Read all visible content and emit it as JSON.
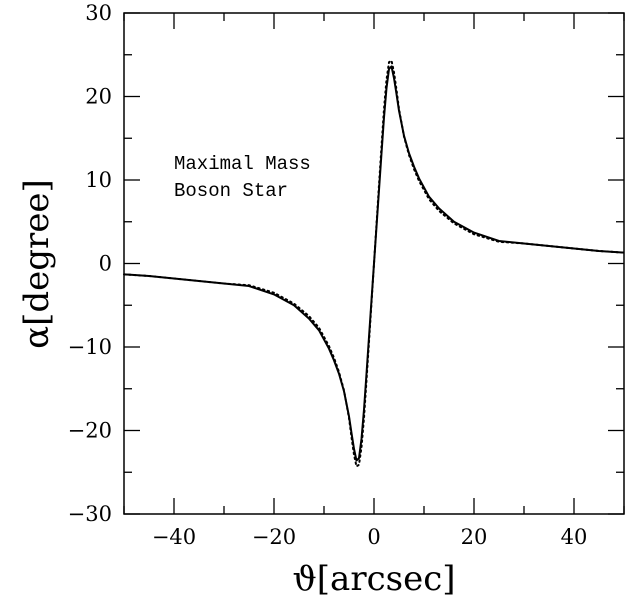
{
  "chart_data": {
    "type": "line",
    "title": "",
    "xlabel": "ϑ[arcsec]",
    "ylabel": "α[degree]",
    "xlim": [
      -50,
      50
    ],
    "ylim": [
      -30,
      30
    ],
    "xticks": [
      -40,
      -20,
      0,
      20,
      40
    ],
    "yticks": [
      -30,
      -20,
      -10,
      0,
      10,
      20,
      30
    ],
    "x_tick_labels": [
      "−40",
      "−20",
      "0",
      "20",
      "40"
    ],
    "y_tick_labels": [
      "−30",
      "−20",
      "−10",
      "0",
      "10",
      "20",
      "30"
    ],
    "grid": false,
    "annotation": [
      "Maximal Mass",
      "Boson Star"
    ],
    "series": [
      {
        "style": "solid",
        "x": [
          -50,
          -45,
          -40,
          -35,
          -30,
          -25,
          -20,
          -16,
          -13,
          -11,
          -9,
          -8,
          -7,
          -6,
          -5,
          -4.5,
          -4,
          -3.5,
          -3,
          -2.5,
          -2,
          -1.5,
          -1,
          0,
          1,
          1.5,
          2,
          2.5,
          3,
          3.5,
          4,
          4.5,
          5,
          6,
          7,
          8,
          9,
          11,
          13,
          16,
          20,
          25,
          30,
          35,
          40,
          45,
          50
        ],
        "y": [
          -1.3,
          -1.5,
          -1.8,
          -2.1,
          -2.4,
          -2.7,
          -3.7,
          -5.0,
          -6.6,
          -8.0,
          -10.2,
          -11.6,
          -13.2,
          -15.3,
          -18.3,
          -20.3,
          -22.2,
          -23.6,
          -23.3,
          -21.0,
          -17.5,
          -13.2,
          -8.8,
          0.0,
          8.8,
          13.2,
          17.5,
          21.0,
          23.3,
          23.6,
          22.2,
          20.3,
          18.3,
          15.3,
          13.2,
          11.6,
          10.2,
          8.0,
          6.6,
          5.0,
          3.7,
          2.7,
          2.4,
          2.1,
          1.8,
          1.5,
          1.3
        ]
      },
      {
        "style": "dotted",
        "x": [
          -50,
          -45,
          -40,
          -35,
          -30,
          -25,
          -20,
          -16,
          -13,
          -11,
          -9,
          -8,
          -7,
          -6,
          -5,
          -4.5,
          -4,
          -3.5,
          -3,
          -2.5,
          -2,
          -1.5,
          -1,
          0,
          1,
          1.5,
          2,
          2.5,
          3,
          3.5,
          4,
          4.5,
          5,
          6,
          7,
          8,
          9,
          11,
          13,
          16,
          20,
          25,
          30,
          35,
          40,
          45,
          50
        ],
        "y": [
          -1.3,
          -1.5,
          -1.8,
          -2.1,
          -2.4,
          -2.6,
          -3.5,
          -4.8,
          -6.3,
          -7.7,
          -9.9,
          -11.3,
          -13.0,
          -15.2,
          -18.5,
          -20.8,
          -22.9,
          -24.3,
          -24.1,
          -22.0,
          -18.5,
          -14.0,
          -9.4,
          0.0,
          9.4,
          14.0,
          18.5,
          22.0,
          24.1,
          24.3,
          22.9,
          20.8,
          18.5,
          15.2,
          13.0,
          11.3,
          9.9,
          7.7,
          6.3,
          4.8,
          3.5,
          2.6,
          2.4,
          2.1,
          1.8,
          1.5,
          1.3
        ]
      }
    ]
  }
}
